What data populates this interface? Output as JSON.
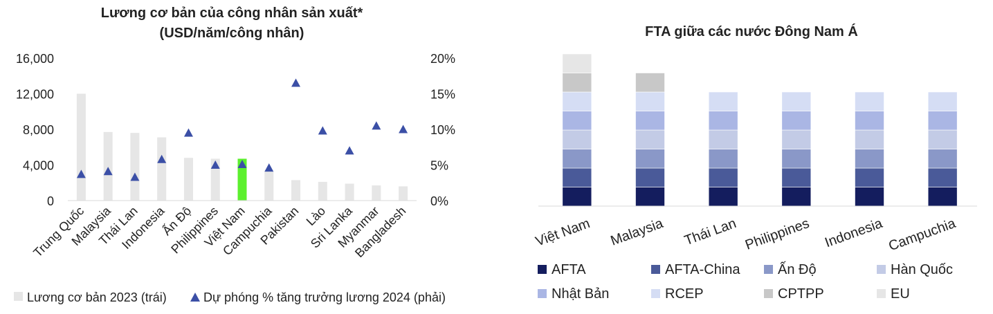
{
  "chart_data": [
    {
      "type": "bar",
      "title_line1": "Lương cơ bản của công nhân sản xuất*",
      "title_line2": "(USD/năm/công nhân)",
      "categories": [
        "Trung Quốc",
        "Malaysia",
        "Thái Lan",
        "Indonesia",
        "Ấn Độ",
        "Philippines",
        "Việt Nam",
        "Campuchia",
        "Pakistan",
        "Lào",
        "Sri Lanka",
        "Myanmar",
        "Bangladesh"
      ],
      "y_left_ticks": [
        "0",
        "4,000",
        "8,000",
        "12,000",
        "16,000"
      ],
      "y_left_lim": [
        0,
        16000
      ],
      "y_right_ticks": [
        "0%",
        "5%",
        "10%",
        "15%",
        "20%"
      ],
      "y_right_lim": [
        0,
        20
      ],
      "highlight_category": "Việt Nam",
      "bar_color": "#e6e6e6",
      "highlight_color": "#5cf02e",
      "marker_color": "#3b4fa6",
      "series": [
        {
          "name": "Lương cơ bản 2023 (trái)",
          "kind": "bar",
          "axis": "left",
          "values": [
            12000,
            7700,
            7600,
            7100,
            4800,
            4700,
            4700,
            3300,
            2300,
            2100,
            1900,
            1700,
            1600
          ]
        },
        {
          "name": "Dự phóng % tăng trưởng lương 2024 (phải)",
          "kind": "marker",
          "axis": "right",
          "values": [
            3.7,
            4.1,
            3.3,
            5.8,
            9.5,
            5.0,
            5.1,
            4.6,
            16.5,
            9.8,
            7.0,
            10.5,
            10.0
          ]
        }
      ],
      "legend_position": "bottom"
    },
    {
      "type": "bar",
      "stacked": true,
      "title": "FTA giữa các nước Đông Nam Á",
      "categories": [
        "Việt Nam",
        "Malaysia",
        "Thái Lan",
        "Philippines",
        "Indonesia",
        "Campuchia"
      ],
      "series": [
        {
          "name": "AFTA",
          "color": "#141d5e",
          "values": [
            1,
            1,
            1,
            1,
            1,
            1
          ]
        },
        {
          "name": "AFTA-China",
          "color": "#4a5a99",
          "values": [
            1,
            1,
            1,
            1,
            1,
            1
          ]
        },
        {
          "name": "Ấn Độ",
          "color": "#8a98c8",
          "values": [
            1,
            1,
            1,
            1,
            1,
            1
          ]
        },
        {
          "name": "Hàn Quốc",
          "color": "#c3cbe6",
          "values": [
            1,
            1,
            1,
            1,
            1,
            1
          ]
        },
        {
          "name": "Nhật Bản",
          "color": "#aab6e4",
          "values": [
            1,
            1,
            1,
            1,
            1,
            1
          ]
        },
        {
          "name": "RCEP",
          "color": "#d5ddf4",
          "values": [
            1,
            1,
            1,
            1,
            1,
            1
          ]
        },
        {
          "name": "CPTPP",
          "color": "#c8c8c8",
          "values": [
            1,
            1,
            0,
            0,
            0,
            0
          ]
        },
        {
          "name": "EU",
          "color": "#e6e6e6",
          "values": [
            1,
            0,
            0,
            0,
            0,
            0
          ]
        }
      ],
      "legend_position": "bottom"
    }
  ]
}
